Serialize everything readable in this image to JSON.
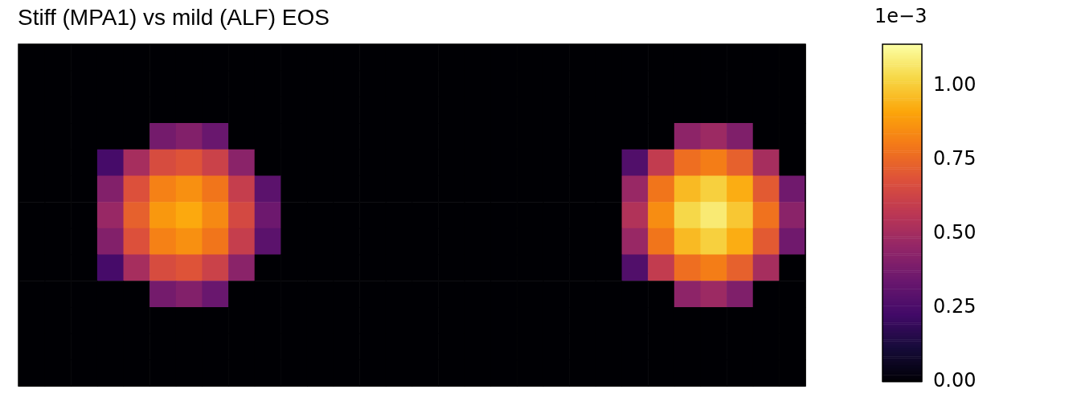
{
  "chart_data": {
    "type": "heatmap",
    "title": "Stiff (MPA1) vs mild (ALF) EOS",
    "annotations": [
      "1e−3"
    ],
    "categories": [
      null,
      null,
      null,
      null,
      null,
      null,
      null,
      null,
      null,
      null,
      null,
      null,
      null,
      null,
      null,
      null,
      null,
      null,
      null,
      null,
      null,
      null,
      null,
      null,
      null,
      null,
      null,
      null,
      null,
      null
    ],
    "y_categories": [
      null,
      null,
      null,
      null,
      null,
      null,
      null,
      null,
      null,
      null,
      null,
      null,
      null
    ],
    "cells": [
      [
        0,
        0,
        0,
        0,
        0,
        0,
        0,
        0,
        0,
        0,
        0,
        0,
        0,
        0,
        0,
        0,
        0,
        0,
        0,
        0,
        0,
        0,
        0,
        0,
        0,
        0,
        0,
        0,
        0,
        0
      ],
      [
        0,
        0,
        0,
        0,
        0,
        0,
        0,
        0,
        0,
        0,
        0,
        0,
        0,
        0,
        0,
        0,
        0,
        0,
        0,
        0,
        0,
        0,
        0,
        0,
        0,
        0,
        0,
        0,
        0,
        0
      ],
      [
        0,
        0,
        0,
        0,
        0,
        0,
        0,
        0,
        0,
        0,
        0,
        0,
        0,
        0,
        0,
        0,
        0,
        0,
        0,
        0,
        0,
        0,
        0,
        0,
        0,
        0,
        0,
        0,
        0,
        0
      ],
      [
        0,
        0,
        0,
        0,
        0,
        0.37,
        0.41,
        0.34,
        0,
        0,
        0,
        0,
        0,
        0,
        0,
        0,
        0,
        0,
        0,
        0,
        0,
        0,
        0,
        0,
        0,
        0.44,
        0.48,
        0.4,
        0,
        0
      ],
      [
        0,
        0,
        0,
        0.24,
        0.51,
        0.66,
        0.69,
        0.62,
        0.43,
        0,
        0,
        0,
        0,
        0,
        0,
        0,
        0,
        0,
        0,
        0,
        0,
        0,
        0,
        0.27,
        0.59,
        0.77,
        0.81,
        0.73,
        0.51,
        0
      ],
      [
        0,
        0,
        0,
        0.41,
        0.68,
        0.82,
        0.86,
        0.79,
        0.6,
        0.3,
        0,
        0,
        0,
        0,
        0,
        0,
        0,
        0,
        0,
        0,
        0,
        0,
        0,
        0.47,
        0.79,
        0.96,
        1.01,
        0.93,
        0.71,
        0.36
      ],
      [
        0,
        0,
        0,
        0.47,
        0.73,
        0.88,
        0.92,
        0.84,
        0.65,
        0.35,
        0,
        0,
        0,
        0,
        0,
        0,
        0,
        0,
        0,
        0,
        0,
        0,
        0,
        0.54,
        0.85,
        1.03,
        1.08,
        0.99,
        0.78,
        0.43
      ],
      [
        0,
        0,
        0,
        0.41,
        0.68,
        0.82,
        0.86,
        0.79,
        0.6,
        0.3,
        0,
        0,
        0,
        0,
        0,
        0,
        0,
        0,
        0,
        0,
        0,
        0,
        0,
        0.47,
        0.79,
        0.96,
        1.01,
        0.93,
        0.71,
        0.36
      ],
      [
        0,
        0,
        0,
        0.24,
        0.51,
        0.66,
        0.69,
        0.62,
        0.43,
        0,
        0,
        0,
        0,
        0,
        0,
        0,
        0,
        0,
        0,
        0,
        0,
        0,
        0,
        0.27,
        0.59,
        0.77,
        0.81,
        0.73,
        0.51,
        0
      ],
      [
        0,
        0,
        0,
        0,
        0,
        0.37,
        0.41,
        0.34,
        0,
        0,
        0,
        0,
        0,
        0,
        0,
        0,
        0,
        0,
        0,
        0,
        0,
        0,
        0,
        0,
        0,
        0.44,
        0.48,
        0.4,
        0,
        0
      ],
      [
        0,
        0,
        0,
        0,
        0,
        0,
        0,
        0,
        0,
        0,
        0,
        0,
        0,
        0,
        0,
        0,
        0,
        0,
        0,
        0,
        0,
        0,
        0,
        0,
        0,
        0,
        0,
        0,
        0,
        0
      ],
      [
        0,
        0,
        0,
        0,
        0,
        0,
        0,
        0,
        0,
        0,
        0,
        0,
        0,
        0,
        0,
        0,
        0,
        0,
        0,
        0,
        0,
        0,
        0,
        0,
        0,
        0,
        0,
        0,
        0,
        0
      ],
      [
        0,
        0,
        0,
        0,
        0,
        0,
        0,
        0,
        0,
        0,
        0,
        0,
        0,
        0,
        0,
        0,
        0,
        0,
        0,
        0,
        0,
        0,
        0,
        0,
        0,
        0,
        0,
        0,
        0,
        0
      ]
    ],
    "clim": [
      0,
      1.14
    ],
    "cticks": [
      {
        "value": 0,
        "label": "0.00"
      },
      {
        "value": 0.25,
        "label": "0.25"
      },
      {
        "value": 0.5,
        "label": "0.50"
      },
      {
        "value": 0.75,
        "label": "0.75"
      },
      {
        "value": 1,
        "label": "1.00"
      }
    ],
    "tick_labels": false
  }
}
